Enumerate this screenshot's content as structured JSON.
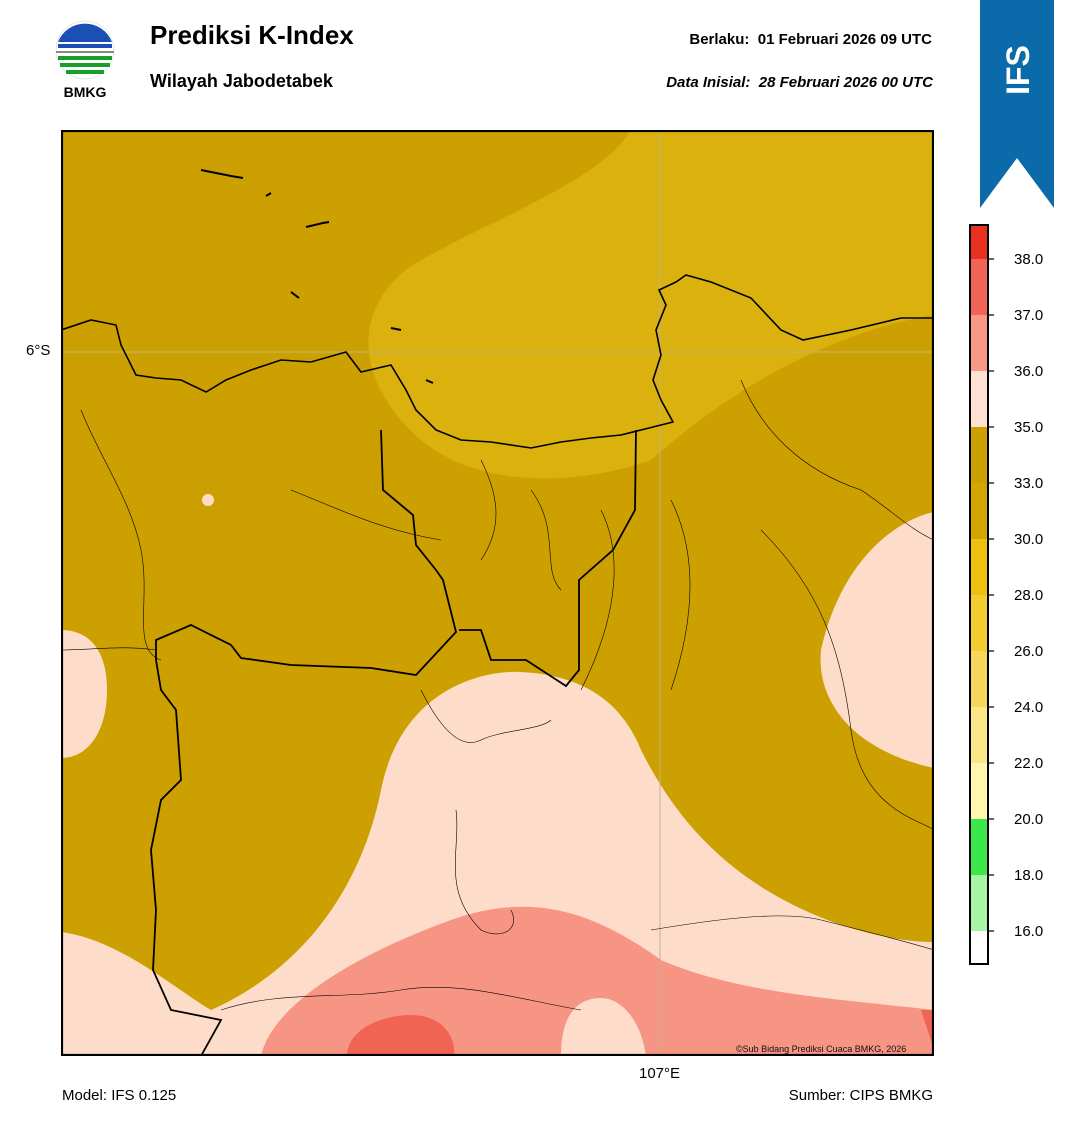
{
  "header": {
    "title": "Prediksi K-Index",
    "subtitle": "Wilayah Jabodetabek",
    "valid_label": "Berlaku:",
    "valid_value": "01 Februari 2026 09 UTC",
    "init_label": "Data Inisial:",
    "init_value": "28 Februari 2026 00 UTC"
  },
  "logo": {
    "text": "BMKG",
    "icon": "bmkg-logo"
  },
  "badge": {
    "text": "IFS",
    "color": "#0a6aaa"
  },
  "map": {
    "lat_label": "6°S",
    "lon_label": "107°E",
    "credit": "©Sub Bidang Prediksi Cuaca BMKG, 2026"
  },
  "footer": {
    "model": "Model: IFS 0.125",
    "source": "Sumber: CIPS BMKG"
  },
  "colorbar": {
    "ticks": [
      "38.0",
      "37.0",
      "36.0",
      "35.0",
      "33.0",
      "30.0",
      "28.0",
      "26.0",
      "24.0",
      "22.0",
      "20.0",
      "18.0",
      "16.0"
    ],
    "colors_top_to_bottom": [
      "#e8311e",
      "#f06555",
      "#f79886",
      "#fde1d3",
      "#cca000",
      "#d2a500",
      "#eebf10",
      "#f2cc30",
      "#f6d95c",
      "#fbe788",
      "#fff6b0",
      "#3be84a",
      "#a8f4a6",
      "#ffffff"
    ]
  },
  "legend_colors": {
    "k30_33": "#cca000",
    "k28_30": "#dbb10d",
    "k35_36": "#fddcc9",
    "k36_37": "#f79584",
    "k37_38": "#f06453"
  }
}
